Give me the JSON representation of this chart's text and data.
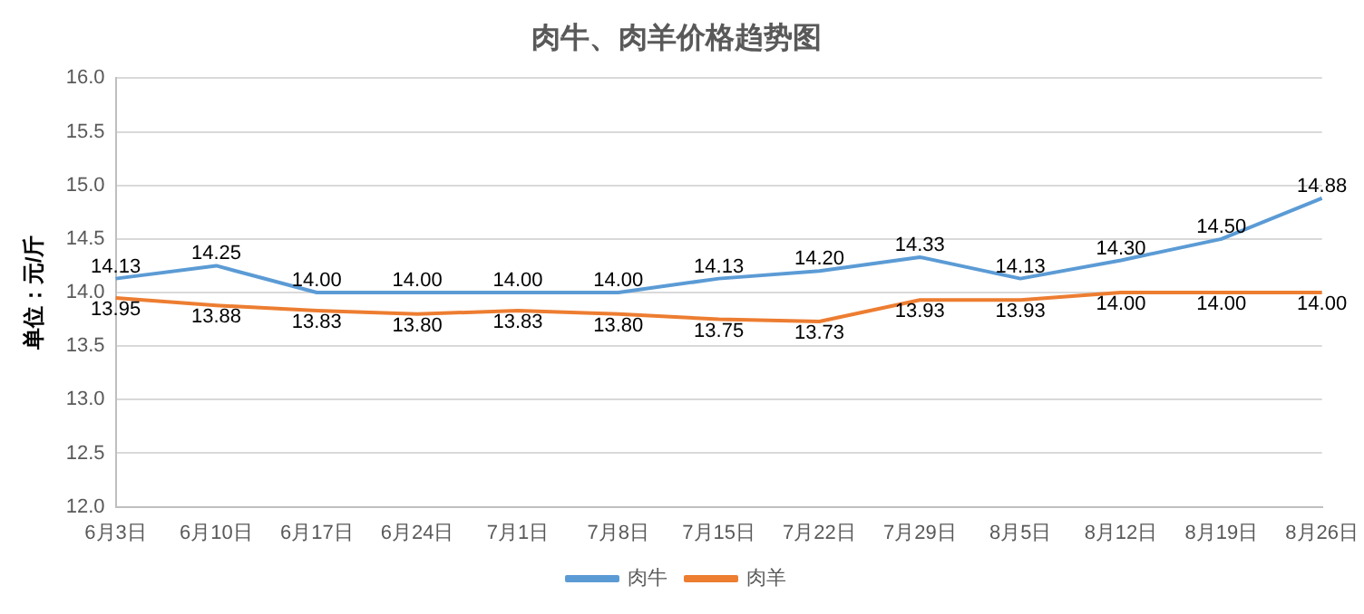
{
  "chart_data": {
    "type": "line",
    "title": "肉牛、肉羊价格趋势图",
    "ylabel": "单位：元/斤",
    "categories": [
      "6月3日",
      "6月10日",
      "6月17日",
      "6月24日",
      "7月1日",
      "7月8日",
      "7月15日",
      "7月22日",
      "7月29日",
      "8月5日",
      "8月12日",
      "8月19日",
      "8月26日"
    ],
    "series": [
      {
        "name": "肉牛",
        "color": "#5b9bd5",
        "values": [
          14.13,
          14.25,
          14.0,
          14.0,
          14.0,
          14.0,
          14.13,
          14.2,
          14.33,
          14.13,
          14.3,
          14.5,
          14.88
        ],
        "value_labels": [
          "14.13",
          "14.25",
          "14.00",
          "14.00",
          "14.00",
          "14.00",
          "14.13",
          "14.20",
          "14.33",
          "14.13",
          "14.30",
          "14.50",
          "14.88"
        ]
      },
      {
        "name": "肉羊",
        "color": "#ed7d31",
        "values": [
          13.95,
          13.88,
          13.83,
          13.8,
          13.83,
          13.8,
          13.75,
          13.73,
          13.93,
          13.93,
          14.0,
          14.0,
          14.0
        ],
        "value_labels": [
          "13.95",
          "13.88",
          "13.83",
          "13.80",
          "13.83",
          "13.80",
          "13.75",
          "13.73",
          "13.93",
          "13.93",
          "14.00",
          "14.00",
          "14.00"
        ]
      }
    ],
    "ylim": [
      12.0,
      16.0
    ],
    "yticks": [
      {
        "value": 12,
        "label": "12.0"
      },
      {
        "value": 12.5,
        "label": "12.5"
      },
      {
        "value": 13,
        "label": "13.0"
      },
      {
        "value": 13.5,
        "label": "13.5"
      },
      {
        "value": 14,
        "label": "14.0"
      },
      {
        "value": 14.5,
        "label": "14.5"
      },
      {
        "value": 15,
        "label": "15.0"
      },
      {
        "value": 15.5,
        "label": "15.5"
      },
      {
        "value": 16,
        "label": "16.0"
      }
    ],
    "grid": "y",
    "legend": "bottom",
    "marker": "none",
    "line_style": "solid"
  }
}
